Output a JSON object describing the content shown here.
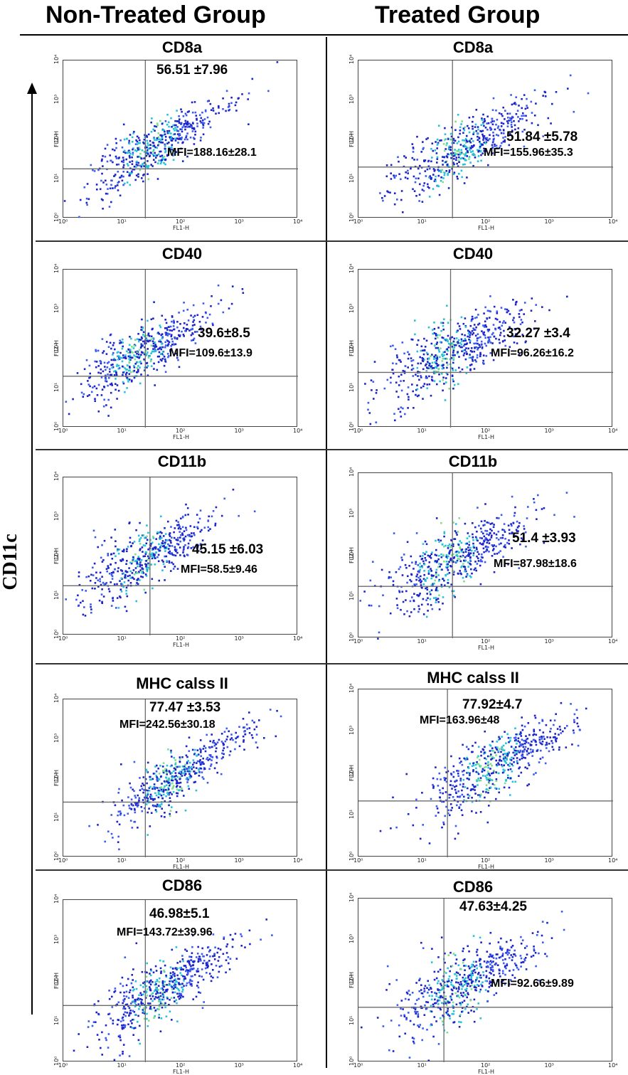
{
  "headers": {
    "left": "Non-Treated Group",
    "right": "Treated Group"
  },
  "y_axis_label": "CD11c",
  "colors": {
    "dot_dark": "#1c24c8",
    "dot_mid": "#3b5cf0",
    "dot_cyan": "#26c2d8",
    "dot_green": "#7ee08a",
    "gate": "#6b6b6b"
  },
  "chart_data": [
    {
      "type": "scatter",
      "group": "Non-Treated Group",
      "title": "CD8a",
      "stat": "56.51 ±7.96",
      "mfi": "MFI=188.16±28.1",
      "xlabel": "FL1-H",
      "ylabel": "FL2-H",
      "x_scale": "log",
      "y_scale": "log",
      "xlim": [
        1,
        10000
      ],
      "ylim": [
        1,
        10000
      ],
      "xticks": [
        "10⁰",
        "10¹",
        "10²",
        "10³",
        "10⁴"
      ],
      "yticks": [
        "10⁰",
        "10¹",
        "10²",
        "10³",
        "10⁴"
      ],
      "gate": {
        "x": 25,
        "y": 18
      },
      "cluster": {
        "x_center": 30,
        "y_center": 60,
        "slope": 0.85,
        "spread": 0.32,
        "n": 520
      }
    },
    {
      "type": "scatter",
      "group": "Treated Group",
      "title": "CD8a",
      "stat": "51.84 ±5.78",
      "mfi": "MFI=155.96±35.3",
      "xlabel": "FL1-H",
      "ylabel": "FL2-H",
      "x_scale": "log",
      "y_scale": "log",
      "xlim": [
        1,
        10000
      ],
      "ylim": [
        1,
        10000
      ],
      "xticks": [
        "10⁰",
        "10¹",
        "10²",
        "10³",
        "10⁴"
      ],
      "yticks": [
        "10⁰",
        "10¹",
        "10²",
        "10³",
        "10⁴"
      ],
      "gate": {
        "x": 30,
        "y": 20
      },
      "cluster": {
        "x_center": 35,
        "y_center": 55,
        "slope": 0.85,
        "spread": 0.38,
        "n": 520
      }
    },
    {
      "type": "scatter",
      "group": "Non-Treated Group",
      "title": "CD40",
      "stat": "39.6±8.5",
      "mfi": "MFI=109.6±13.9",
      "xlabel": "FL1-H",
      "ylabel": "FL2-H",
      "x_scale": "log",
      "y_scale": "log",
      "xlim": [
        1,
        10000
      ],
      "ylim": [
        1,
        10000
      ],
      "xticks": [
        "10⁰",
        "10¹",
        "10²",
        "10³",
        "10⁴"
      ],
      "yticks": [
        "10⁰",
        "10¹",
        "10²",
        "10³",
        "10⁴"
      ],
      "gate": {
        "x": 25,
        "y": 20
      },
      "cluster": {
        "x_center": 18,
        "y_center": 70,
        "slope": 0.8,
        "spread": 0.38,
        "n": 520
      }
    },
    {
      "type": "scatter",
      "group": "Treated Group",
      "title": "CD40",
      "stat": "32.27 ±3.4",
      "mfi": "MFI=96.26±16.2",
      "xlabel": "FL1-H",
      "ylabel": "FL2-H",
      "x_scale": "log",
      "y_scale": "log",
      "xlim": [
        1,
        10000
      ],
      "ylim": [
        1,
        10000
      ],
      "xticks": [
        "10⁰",
        "10¹",
        "10²",
        "10³",
        "10⁴"
      ],
      "yticks": [
        "10⁰",
        "10¹",
        "10²",
        "10³",
        "10⁴"
      ],
      "gate": {
        "x": 28,
        "y": 25
      },
      "cluster": {
        "x_center": 20,
        "y_center": 60,
        "slope": 0.8,
        "spread": 0.42,
        "n": 560
      }
    },
    {
      "type": "scatter",
      "group": "Non-Treated Group",
      "title": "CD11b",
      "stat": "45.15 ±6.03",
      "mfi": "MFI=58.5±9.46",
      "xlabel": "FL1-H",
      "ylabel": "FL2-H",
      "x_scale": "log",
      "y_scale": "log",
      "xlim": [
        1,
        10000
      ],
      "ylim": [
        1,
        10000
      ],
      "xticks": [
        "10⁰",
        "10¹",
        "10²",
        "10³",
        "10⁴"
      ],
      "yticks": [
        "10⁰",
        "10¹",
        "10²",
        "10³",
        "10⁴"
      ],
      "gate": {
        "x": 30,
        "y": 18
      },
      "cluster": {
        "x_center": 20,
        "y_center": 80,
        "slope": 0.75,
        "spread": 0.4,
        "n": 500
      }
    },
    {
      "type": "scatter",
      "group": "Treated Group",
      "title": "CD11b",
      "stat": "51.4 ±3.93",
      "mfi": "MFI=87.98±18.6",
      "xlabel": "FL1-H",
      "ylabel": "FL2-H",
      "x_scale": "log",
      "y_scale": "log",
      "xlim": [
        1,
        10000
      ],
      "ylim": [
        1,
        10000
      ],
      "xticks": [
        "10⁰",
        "10¹",
        "10²",
        "10³",
        "10⁴"
      ],
      "yticks": [
        "10⁰",
        "10¹",
        "10²",
        "10³",
        "10⁴"
      ],
      "gate": {
        "x": 30,
        "y": 18
      },
      "cluster": {
        "x_center": 25,
        "y_center": 70,
        "slope": 0.8,
        "spread": 0.42,
        "n": 560
      }
    },
    {
      "type": "scatter",
      "group": "Non-Treated Group",
      "title": "MHC calss II",
      "stat": "77.47 ±3.53",
      "mfi": "MFI=242.56±30.18",
      "xlabel": "FL1-H",
      "ylabel": "FL2-H",
      "x_scale": "log",
      "y_scale": "log",
      "xlim": [
        1,
        10000
      ],
      "ylim": [
        1,
        10000
      ],
      "xticks": [
        "10⁰",
        "10¹",
        "10²",
        "10³",
        "10⁴"
      ],
      "yticks": [
        "10⁰",
        "10¹",
        "10²",
        "10³",
        "10⁴"
      ],
      "gate": {
        "x": 25,
        "y": 25
      },
      "cluster": {
        "x_center": 70,
        "y_center": 100,
        "slope": 0.9,
        "spread": 0.33,
        "n": 520
      }
    },
    {
      "type": "scatter",
      "group": "Treated Group",
      "title": "MHC calss II",
      "stat": "77.92±4.7",
      "mfi": "MFI=163.96±48",
      "xlabel": "FL1-H",
      "ylabel": "FL2-H",
      "x_scale": "log",
      "y_scale": "log",
      "xlim": [
        1,
        10000
      ],
      "ylim": [
        1,
        10000
      ],
      "xticks": [
        "10⁰",
        "10¹",
        "10²",
        "10³",
        "10⁴"
      ],
      "yticks": [
        "10⁰",
        "10¹",
        "10²",
        "10³",
        "10⁴"
      ],
      "gate": {
        "x": 25,
        "y": 22
      },
      "cluster": {
        "x_center": 120,
        "y_center": 140,
        "slope": 0.85,
        "spread": 0.35,
        "n": 560
      }
    },
    {
      "type": "scatter",
      "group": "Non-Treated Group",
      "title": "CD86",
      "stat": "46.98±5.1",
      "mfi": "MFI=143.72±39.96",
      "xlabel": "FL1-H",
      "ylabel": "FL2-H",
      "x_scale": "log",
      "y_scale": "log",
      "xlim": [
        1,
        10000
      ],
      "ylim": [
        1,
        10000
      ],
      "xticks": [
        "10⁰",
        "10¹",
        "10²",
        "10³",
        "10⁴"
      ],
      "yticks": [
        "10⁰",
        "10¹",
        "10²",
        "10³",
        "10⁴"
      ],
      "gate": {
        "x": 25,
        "y": 25
      },
      "cluster": {
        "x_center": 40,
        "y_center": 60,
        "slope": 0.8,
        "spread": 0.38,
        "n": 560
      }
    },
    {
      "type": "scatter",
      "group": "Treated Group",
      "title": "CD86",
      "stat": "47.63±4.25",
      "mfi": "MFI=92.66±9.89",
      "xlabel": "FL1-H",
      "ylabel": "FL2-H",
      "x_scale": "log",
      "y_scale": "log",
      "xlim": [
        1,
        10000
      ],
      "ylim": [
        1,
        10000
      ],
      "xticks": [
        "10⁰",
        "10¹",
        "10²",
        "10³",
        "10⁴"
      ],
      "yticks": [
        "10⁰",
        "10¹",
        "10²",
        "10³",
        "10⁴"
      ],
      "gate": {
        "x": 22,
        "y": 22
      },
      "cluster": {
        "x_center": 35,
        "y_center": 70,
        "slope": 0.8,
        "spread": 0.4,
        "n": 560
      }
    }
  ]
}
